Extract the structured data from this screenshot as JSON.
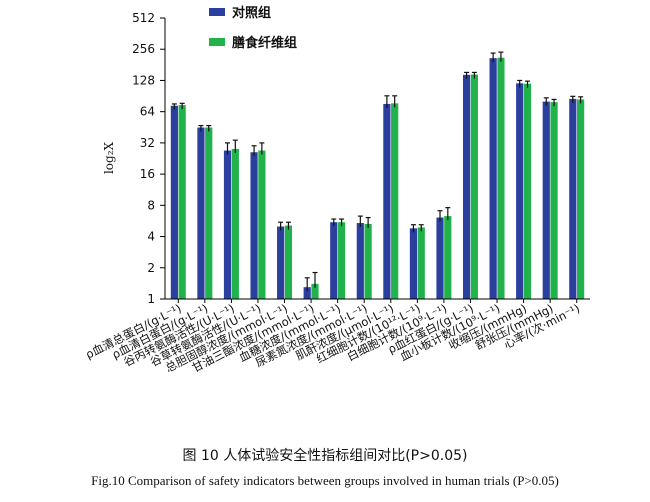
{
  "chart_data": {
    "type": "bar",
    "ylabel": "log₂X",
    "yscale": "log2",
    "ylim": [
      1,
      512
    ],
    "yticks": [
      "1",
      "2",
      "4",
      "8",
      "16",
      "32",
      "64",
      "128",
      "256",
      "512"
    ],
    "categories": [
      "ρ血清总蛋白/(g·L⁻¹)",
      "ρ血清白蛋白/(g·L⁻¹)",
      "谷丙转氨酶活性/(U·L⁻¹)",
      "谷草转氨酶活性/(U·L⁻¹)",
      "总胆固醇浓度/(mmol·L⁻¹)",
      "甘油三酯浓度/(mmol·L⁻¹)",
      "血糖浓度/(mmol·L⁻¹)",
      "尿素氮浓度/(mmol·L⁻¹)",
      "肌酐浓度/(μmol·L⁻¹)",
      "红细胞计数/(10¹²·L⁻¹)",
      "白细胞计数/(10⁹·L⁻¹)",
      "ρ血红蛋白/(g·L⁻¹)",
      "血小板计数/(10⁹·L⁻¹)",
      "收缩压/(mmHg)",
      "舒张压/(mmHg)",
      "心率/(次·min⁻¹)"
    ],
    "series": [
      {
        "name": "对照组",
        "color": "#2b3f9f",
        "values": [
          73,
          45,
          27,
          26,
          5.0,
          1.3,
          5.5,
          5.4,
          76,
          4.8,
          6.1,
          145,
          210,
          120,
          80,
          85
        ],
        "errors": [
          3,
          2,
          5,
          4,
          0.5,
          0.3,
          0.4,
          0.9,
          15,
          0.4,
          1.0,
          8,
          25,
          8,
          7,
          5
        ]
      },
      {
        "name": "膳食纤维组",
        "color": "#22b24c",
        "values": [
          74,
          45,
          28,
          27,
          5.1,
          1.4,
          5.5,
          5.3,
          77,
          4.9,
          6.3,
          146,
          212,
          119,
          79,
          84
        ],
        "errors": [
          3,
          2,
          6,
          5,
          0.4,
          0.4,
          0.4,
          0.8,
          14,
          0.3,
          1.3,
          7,
          28,
          7,
          5,
          5
        ]
      }
    ]
  },
  "captions": {
    "cn": "图 10   人体试验安全性指标组间对比(P>0.05)",
    "en": "Fig.10   Comparison of safety indicators between groups involved in human trials (P>0.05)"
  }
}
